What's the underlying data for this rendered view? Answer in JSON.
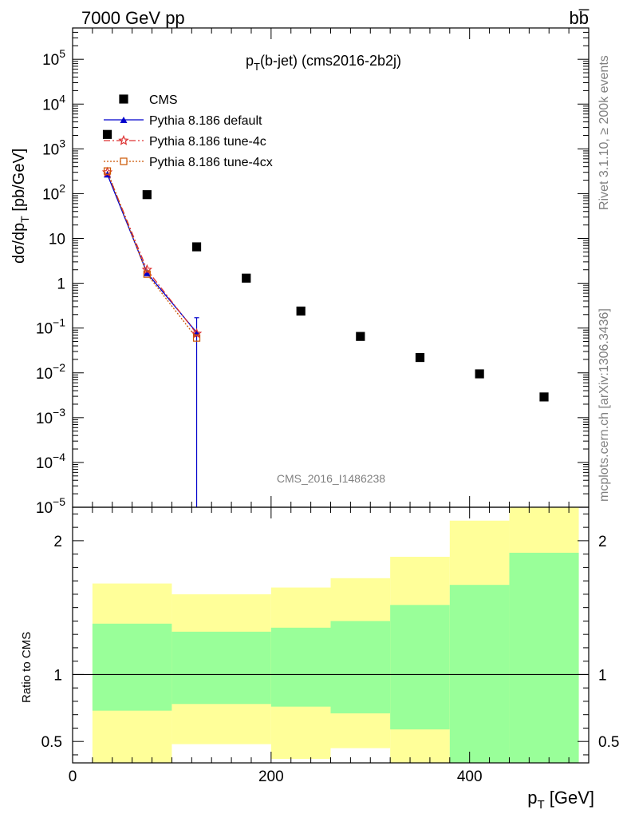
{
  "header": {
    "left": "7000 GeV pp",
    "right": "bb̅"
  },
  "side_labels": {
    "rivet": "Rivet 3.1.10, ≥ 200k events",
    "mcplots": "mcplots.cern.ch [arXiv:1306.3436]"
  },
  "watermark": "CMS_2016_I1486238",
  "chart_data": [
    {
      "type": "scatter",
      "title": "p_T(b-jet) (cms2016-2b2j)",
      "title_main": "p",
      "title_sub": "T",
      "title_rest": "(b-jet) (cms2016-2b2j)",
      "xlabel": "p_T [GeV]",
      "ylabel": "dσ/dp_T [pb/GeV]",
      "xlim": [
        0,
        520
      ],
      "ylim": [
        1e-05,
        500000.0
      ],
      "yscale": "log",
      "x_ticks": [
        "0",
        "200",
        "400"
      ],
      "y_ticks": [
        "10^-5",
        "10^-4",
        "10^-3",
        "10^-2",
        "10^-1",
        "1",
        "10",
        "10^2",
        "10^3",
        "10^4",
        "10^5"
      ],
      "legend_position": "top-left",
      "series": [
        {
          "name": "CMS",
          "color": "#000000",
          "marker": "square",
          "x": [
            35,
            75,
            125,
            175,
            230,
            290,
            350,
            410,
            475
          ],
          "y": [
            2100,
            95,
            6.5,
            1.3,
            0.24,
            0.065,
            0.022,
            0.0095,
            0.0029
          ]
        },
        {
          "name": "Pythia 8.186 default",
          "color": "#0000cc",
          "marker": "triangle",
          "x": [
            35,
            75,
            125
          ],
          "y": [
            270,
            1.7,
            0.08
          ],
          "yerr_low": [
            0,
            0,
            0.08
          ],
          "yerr_high": [
            0,
            0,
            0.09
          ]
        },
        {
          "name": "Pythia 8.186 tune-4c",
          "color": "#dd3333",
          "marker": "star",
          "x": [
            35,
            75,
            125
          ],
          "y": [
            300,
            2.0,
            0.075
          ]
        },
        {
          "name": "Pythia 8.186 tune-4cx",
          "color": "#cc5500",
          "marker": "open-square",
          "x": [
            35,
            75,
            125
          ],
          "y": [
            320,
            1.6,
            0.06
          ]
        }
      ]
    },
    {
      "type": "area",
      "ylabel": "Ratio to CMS",
      "xlim": [
        0,
        520
      ],
      "ylim": [
        0.34,
        2.25
      ],
      "y_ticks": [
        "0.5",
        "1",
        "2"
      ],
      "reference_line": 1,
      "colors": {
        "inner": "#99ff99",
        "outer": "#ffff99"
      },
      "bins": [
        {
          "lo": 20,
          "hi": 100,
          "inner": [
            0.73,
            1.38
          ],
          "outer": [
            0.34,
            1.68
          ]
        },
        {
          "lo": 100,
          "hi": 200,
          "inner": [
            0.78,
            1.32
          ],
          "outer": [
            0.48,
            1.6
          ]
        },
        {
          "lo": 200,
          "hi": 260,
          "inner": [
            0.76,
            1.35
          ],
          "outer": [
            0.37,
            1.65
          ]
        },
        {
          "lo": 260,
          "hi": 320,
          "inner": [
            0.71,
            1.4
          ],
          "outer": [
            0.45,
            1.72
          ]
        },
        {
          "lo": 320,
          "hi": 380,
          "inner": [
            0.59,
            1.52
          ],
          "outer": [
            0.34,
            1.88
          ]
        },
        {
          "lo": 380,
          "hi": 440,
          "inner": [
            0.34,
            1.67
          ],
          "outer": [
            0.34,
            2.15
          ]
        },
        {
          "lo": 440,
          "hi": 510,
          "inner": [
            0.34,
            1.91
          ],
          "outer": [
            0.34,
            2.25
          ]
        }
      ]
    }
  ]
}
